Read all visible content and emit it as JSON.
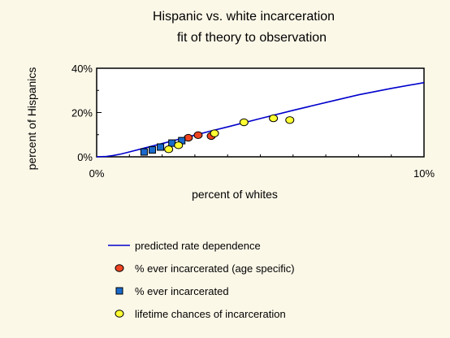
{
  "chart_data": {
    "type": "scatter",
    "title": [
      "Hispanic vs. white incarceration",
      "fit of theory to observation"
    ],
    "xlabel": "percent of whites",
    "ylabel": "percent of Hispanics",
    "xlim": [
      0,
      10
    ],
    "ylim": [
      0,
      40
    ],
    "x_ticks": [
      {
        "value": 0,
        "label": "0%"
      },
      {
        "value": 10,
        "label": "10%"
      }
    ],
    "y_ticks": [
      {
        "value": 0,
        "label": "0%"
      },
      {
        "value": 20,
        "label": "20%"
      },
      {
        "value": 40,
        "label": "40%"
      }
    ],
    "x_minor_ticks": [
      1,
      2,
      3,
      4,
      5,
      6,
      7,
      8,
      9
    ],
    "y_minor_ticks": [
      10,
      30
    ],
    "grid": false,
    "legend_position": "below",
    "series": [
      {
        "name": "predicted rate dependence",
        "kind": "line",
        "color": "#0000cc",
        "points": [
          [
            0,
            0
          ],
          [
            0.3,
            0.2
          ],
          [
            0.5,
            0.6
          ],
          [
            0.75,
            1.3
          ],
          [
            1,
            2.2
          ],
          [
            1.5,
            4.1
          ],
          [
            2,
            6.0
          ],
          [
            2.5,
            7.9
          ],
          [
            3,
            9.8
          ],
          [
            3.5,
            11.7
          ],
          [
            4,
            13.5
          ],
          [
            5,
            17.3
          ],
          [
            6,
            21.0
          ],
          [
            7,
            24.5
          ],
          [
            8,
            28.0
          ],
          [
            9,
            30.9
          ],
          [
            10,
            33.5
          ]
        ]
      },
      {
        "name": "% ever incarcerated (age specific)",
        "kind": "points",
        "marker": "circle",
        "color": "#ee4422",
        "points": [
          [
            2.8,
            8.6
          ],
          [
            3.1,
            9.8
          ],
          [
            3.5,
            9.4
          ]
        ]
      },
      {
        "name": "% ever incarcerated",
        "kind": "points",
        "marker": "square",
        "color": "#1a6acc",
        "points": [
          [
            1.45,
            2.2
          ],
          [
            1.7,
            3.1
          ],
          [
            1.95,
            4.4
          ],
          [
            2.3,
            6.2
          ],
          [
            2.6,
            7.3
          ]
        ]
      },
      {
        "name": "lifetime chances of incarceration",
        "kind": "points",
        "marker": "circle",
        "color": "#ffff33",
        "points": [
          [
            2.2,
            3.4
          ],
          [
            2.5,
            5.2
          ],
          [
            3.6,
            10.6
          ],
          [
            4.5,
            15.6
          ],
          [
            5.4,
            17.4
          ],
          [
            5.9,
            16.6
          ]
        ]
      }
    ]
  }
}
